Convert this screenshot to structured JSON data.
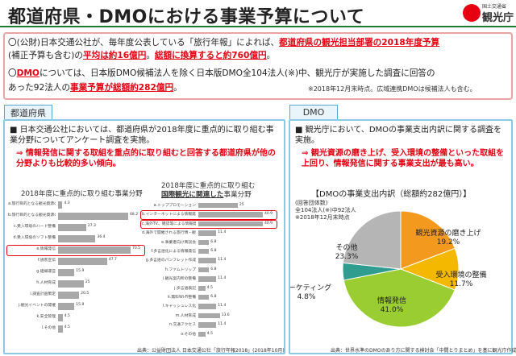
{
  "header": {
    "title": "都道府県・DMOにおける事業予算について",
    "logo_small": "国土交通省",
    "logo_big": "観光庁"
  },
  "summary": {
    "line1_a": "〇(公財)日本交通公社が、毎年度公表している「旅行年報」によれば、",
    "line1_b": "都道府県の観光担当部署の2018年度予算",
    "line2_a": "(補正予算も含む)の",
    "line2_b": "平均は約16億円",
    "line2_c": "。",
    "line2_d": "総額に換算すると約760億円",
    "line2_e": "。",
    "line3_a": "〇",
    "line3_b": "DMO",
    "line3_c": "については、日本版DMO候補法人を除く日本版DMO全104法人(※)中、観光庁が実施した調査に回答の",
    "line4_a": "あった92法人の",
    "line4_b": "事業予算が総額約282億円",
    "line4_c": "。",
    "note": "※2018年12月末時点。広域連携DMOは候補法人も含む。"
  },
  "left": {
    "section_label": "都道府県",
    "bullet": "■ 日本交通公社においては、都道府県が2018年度に重点的に取り組む事業分野についてアンケート調査を実施。",
    "arrow": "⇒ 情報発信に関する取組を重点的に取り組むと回答する都道府県が他の分野よりも比較的多い傾向。",
    "chart1": {
      "title": "2018年度に重点的に取り組む事業分野",
      "highlight": "e.情報発信"
    },
    "chart2": {
      "title_a": "2018年度に重点的に取り組む",
      "title_b": "国際観光に関連した",
      "title_c": "事業分野"
    },
    "source": "出典：公益財団法人 日本交通公社「旅行年報2018」(2018年10月)"
  },
  "right": {
    "section_label": "DMO",
    "bullet": "■ 観光庁において、DMOの事業支出内訳に関する調査を実施。",
    "arrow": "⇒ 観光資源の磨き上げ、受入環境の整備といった取組を上回り、情報発信に関する事業支出が最も高い。",
    "pie_title": "【DMOの事業支出内訳（総額約282億円）】",
    "pie_note": [
      "(回答団体数)",
      "全104法人(※)中92法人",
      "※2018年12月末時点"
    ],
    "source": "出典：世界水準のDMOのあり方に関する検討会「中間とりまとめ」を基に観光庁作成"
  },
  "colors": {
    "accent_red": "#e60012",
    "panel_blue": "#8cc8e8",
    "pie_orange": "#f39a1e",
    "pie_gold": "#f5b800",
    "pie_green": "#9acd32",
    "pie_teal": "#2e9d8f",
    "pie_gray": "#b5b5b5"
  },
  "chart_data": [
    {
      "type": "bar",
      "title": "2018年度に重点的に取り組む事業分野",
      "orientation": "horizontal",
      "categories": [
        "a.旅行目的となる観光資源のハード整備",
        "b.旅行目的となる観光資源のソフト整備",
        "c.受入環境のハード整備",
        "d.受入環境のソフト整備",
        "e.情報発信",
        "f.誘客宣伝",
        "g.組織運営",
        "h.人材育成",
        "i.調査計画策定",
        "j.観光イベントの開催",
        "k.安全管理",
        "l.その他"
      ],
      "values": [
        4.3,
        68.2,
        27.3,
        36.4,
        70.5,
        47.7,
        15.9,
        25.0,
        20.5,
        15.9,
        4.5,
        4.5
      ]
    },
    {
      "type": "bar",
      "title": "2018年度に重点的に取り組む国際観光に関連した事業分野",
      "orientation": "horizontal",
      "categories": [
        "a.トッププロモーション",
        "b.インターネットによる情報発信",
        "c.海外TV、雑誌等による情報発信",
        "d.海外で開催される旅行博・観光展への出展",
        "e.事業者向け商談会",
        "f.多言語化による情報発信",
        "g.多言語のパンフレット作成",
        "h.ファムトリップ",
        "i.観光案内所の整備",
        "j.多言語表記",
        "k.無料Wi-Fi整備",
        "l.キャッシュレス化",
        "m.人材育成",
        "n.交通アクセス",
        "o.その他"
      ],
      "values": [
        25.0,
        40.9,
        40.9,
        11.4,
        6.8,
        6.8,
        11.4,
        6.8,
        11.4,
        4.5,
        6.8,
        11.4,
        13.6,
        11.4,
        4.5
      ]
    },
    {
      "type": "pie",
      "title": "DMOの事業支出内訳（総額約282億円）",
      "categories": [
        "観光資源の磨き上げ",
        "受入環境の整備",
        "情報発信",
        "マーケティング",
        "その他"
      ],
      "values": [
        19.2,
        11.7,
        41.0,
        4.8,
        23.3
      ],
      "unit": "%"
    }
  ]
}
